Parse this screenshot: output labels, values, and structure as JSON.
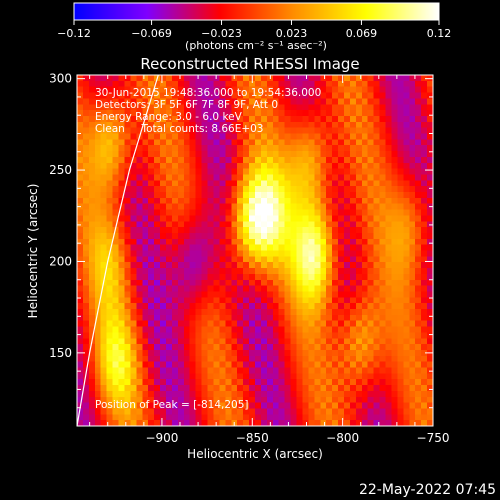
{
  "chart_data": {
    "type": "heatmap",
    "title": "Reconstructed RHESSI Image",
    "xlabel": "Heliocentric X (arcsec)",
    "ylabel": "Heliocentric Y (arcsec)",
    "xlim": [
      -947,
      -750
    ],
    "ylim": [
      110,
      302
    ],
    "x_ticks": [
      -900,
      -850,
      -800,
      -750
    ],
    "x_tick_labels": [
      "−900",
      "−850",
      "−800",
      "−750"
    ],
    "y_ticks": [
      150,
      200,
      250,
      300
    ],
    "y_tick_labels": [
      "150",
      "200",
      "250",
      "300"
    ],
    "colorbar": {
      "range": [
        -0.12,
        0.12
      ],
      "tick_values": [
        -0.12,
        -0.069,
        -0.023,
        0.023,
        0.069,
        0.12
      ],
      "tick_labels": [
        "−0.12",
        "−0.069",
        "−0.023",
        "0.023",
        "0.069",
        "0.12"
      ],
      "unit_label": "(photons cm⁻² s⁻¹ asec⁻²)",
      "colors": [
        "#0000ff",
        "#7f00ff",
        "#ff0000",
        "#ff8c00",
        "#ffff00",
        "#ffffff"
      ]
    },
    "info_lines": [
      "30-Jun-2015 19:48:36.000 to 19:54:36.000",
      "Detectors: 3F 5F 6F 7F 8F 9F, Att 0",
      "Energy Range: 3.0 - 6.0 keV",
      "Clean     Total counts: 8.66E+03"
    ],
    "peak_text": "Position of Peak = [-814,205]",
    "peak_position": [
      -814,
      205
    ],
    "limb": [
      [
        -947,
        110
      ],
      [
        -940,
        150
      ],
      [
        -930,
        200
      ],
      [
        -918,
        250
      ],
      [
        -902,
        302
      ]
    ],
    "sources": [
      {
        "x": -928,
        "y": 265,
        "value": 0.09
      },
      {
        "x": -928,
        "y": 200,
        "value": 0.05
      },
      {
        "x": -925,
        "y": 145,
        "value": 0.07
      },
      {
        "x": -882,
        "y": 200,
        "value": -0.07
      },
      {
        "x": -851,
        "y": 222,
        "value": 0.11
      },
      {
        "x": -840,
        "y": 225,
        "value": 0.07
      },
      {
        "x": -815,
        "y": 205,
        "value": 0.12
      },
      {
        "x": -818,
        "y": 255,
        "value": 0.08
      },
      {
        "x": -790,
        "y": 155,
        "value": 0.08
      },
      {
        "x": -762,
        "y": 220,
        "value": 0.05
      }
    ]
  },
  "footer": {
    "date": "22-May-2022 07:45"
  }
}
